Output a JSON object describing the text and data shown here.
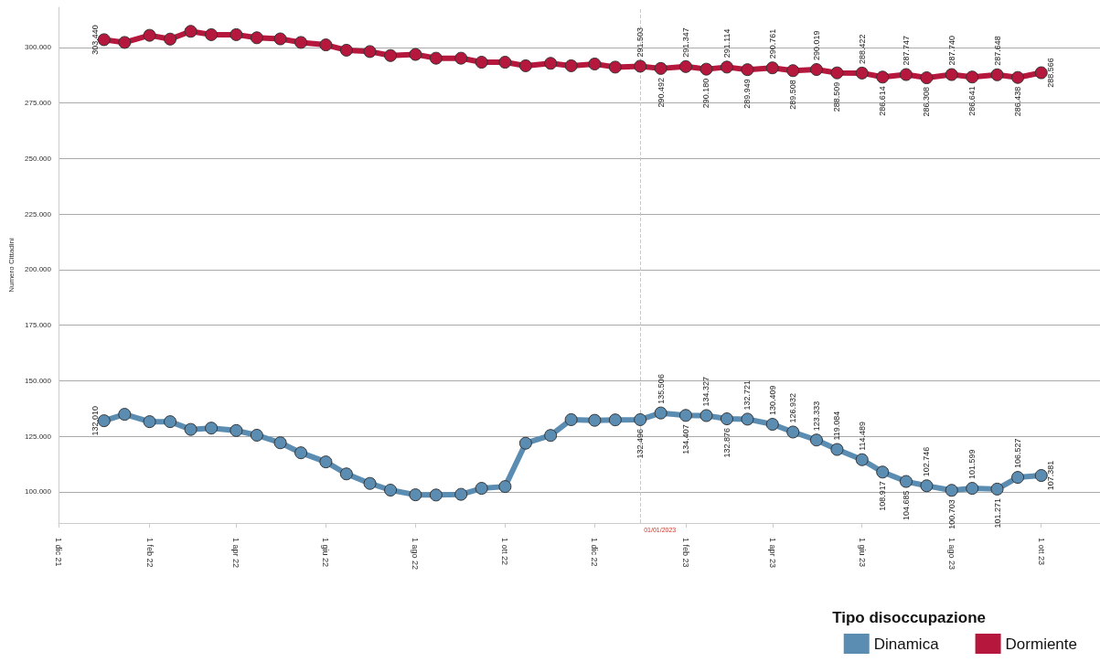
{
  "chart_data": {
    "type": "line",
    "ylabel": "Numero Cittadini",
    "legend_title": "Tipo disoccupazione",
    "legend": "bottom right",
    "grid": "y",
    "marker": "circle",
    "line_style": "solid",
    "x": [
      "2022-01-01",
      "2022-01-15",
      "2022-02-01",
      "2022-02-15",
      "2022-03-01",
      "2022-03-15",
      "2022-04-01",
      "2022-04-15",
      "2022-05-01",
      "2022-05-15",
      "2022-06-01",
      "2022-06-15",
      "2022-07-01",
      "2022-07-15",
      "2022-08-01",
      "2022-08-15",
      "2022-09-01",
      "2022-09-15",
      "2022-10-01",
      "2022-10-15",
      "2022-11-01",
      "2022-11-15",
      "2022-12-01",
      "2022-12-15",
      "2023-01-01",
      "2023-01-15",
      "2023-02-01",
      "2023-02-15",
      "2023-03-01",
      "2023-03-15",
      "2023-04-01",
      "2023-04-15",
      "2023-05-01",
      "2023-05-15",
      "2023-06-01",
      "2023-06-15",
      "2023-07-01",
      "2023-07-15",
      "2023-08-01",
      "2023-08-15",
      "2023-09-01",
      "2023-09-15",
      "2023-10-01"
    ],
    "series": [
      {
        "name": "Dinamica",
        "color": "#5b8db3",
        "values": [
          132010,
          134900,
          131600,
          131600,
          128100,
          128700,
          127600,
          125500,
          122100,
          117600,
          113500,
          108100,
          103800,
          100800,
          98700,
          98600,
          98900,
          101600,
          102400,
          121900,
          125400,
          132500,
          132200,
          132400,
          132496,
          135506,
          134407,
          134327,
          132876,
          132721,
          130409,
          126932,
          123333,
          119084,
          114489,
          108917,
          104685,
          102746,
          100703,
          101599,
          101271,
          106527,
          107381
        ],
        "value_labels": [
          "132.010",
          null,
          null,
          null,
          null,
          null,
          null,
          null,
          null,
          null,
          null,
          null,
          null,
          null,
          null,
          null,
          null,
          null,
          null,
          null,
          null,
          null,
          null,
          null,
          "132.496",
          "135.506",
          "134.407",
          "134.327",
          "132.876",
          "132.721",
          "130.409",
          "126.932",
          "123.333",
          "119.084",
          "114.489",
          "108.917",
          "104.685",
          "102.746",
          "100.703",
          "101.599",
          "101.271",
          "106.527",
          "107.381"
        ]
      },
      {
        "name": "Dormiente",
        "color": "#b5173d",
        "values": [
          303440,
          302200,
          305400,
          303700,
          307200,
          305700,
          305700,
          304300,
          303800,
          302200,
          301100,
          298700,
          298100,
          296300,
          296800,
          295100,
          295100,
          293300,
          293300,
          291700,
          292800,
          291700,
          292500,
          291100,
          291503,
          290492,
          291347,
          290180,
          291114,
          289949,
          290761,
          289508,
          290019,
          288509,
          288422,
          286614,
          287747,
          286308,
          287740,
          286641,
          287648,
          286438,
          288566
        ],
        "value_labels": [
          "303.440",
          null,
          null,
          null,
          null,
          null,
          null,
          null,
          null,
          null,
          null,
          null,
          null,
          null,
          null,
          null,
          null,
          null,
          null,
          null,
          null,
          null,
          null,
          null,
          "291.503",
          "290.492",
          "291.347",
          "290.180",
          "291.114",
          "289.949",
          "290.761",
          "289.508",
          "290.019",
          "288.509",
          "288.422",
          "286.614",
          "287.747",
          "286.308",
          "287.740",
          "286.641",
          "287.648",
          "286.438",
          "288.566"
        ]
      }
    ],
    "xlim": [
      "2021-12-01",
      "2023-11-10"
    ],
    "xticks": [
      {
        "value": "2021-12-01",
        "label": "1 dic 21"
      },
      {
        "value": "2022-02-01",
        "label": "1 feb 22"
      },
      {
        "value": "2022-04-01",
        "label": "1 apr 22"
      },
      {
        "value": "2022-06-01",
        "label": "1 giu 22"
      },
      {
        "value": "2022-08-01",
        "label": "1 ago 22"
      },
      {
        "value": "2022-10-01",
        "label": "1 ott 22"
      },
      {
        "value": "2022-12-01",
        "label": "1 dic 22"
      },
      {
        "value": "2023-02-01",
        "label": "1 feb 23"
      },
      {
        "value": "2023-04-01",
        "label": "1 apr 23"
      },
      {
        "value": "2023-06-01",
        "label": "1 giu 23"
      },
      {
        "value": "2023-08-01",
        "label": "1 ago 23"
      },
      {
        "value": "2023-10-01",
        "label": "1 ott 23"
      }
    ],
    "ylim": [
      86000,
      318000
    ],
    "yticks": [
      {
        "value": 100000,
        "label": "100.000"
      },
      {
        "value": 125000,
        "label": "125.000"
      },
      {
        "value": 150000,
        "label": "150.000"
      },
      {
        "value": 175000,
        "label": "175.000"
      },
      {
        "value": 200000,
        "label": "200.000"
      },
      {
        "value": 225000,
        "label": "225.000"
      },
      {
        "value": 250000,
        "label": "250.000"
      },
      {
        "value": 275000,
        "label": "275.000"
      },
      {
        "value": 300000,
        "label": "300.000"
      }
    ],
    "ref_lines": [
      {
        "axis": "x",
        "value": "2023-01-01",
        "label": "01/01/2023",
        "color": "#c8c8c8",
        "line_style": "dashed"
      }
    ]
  }
}
